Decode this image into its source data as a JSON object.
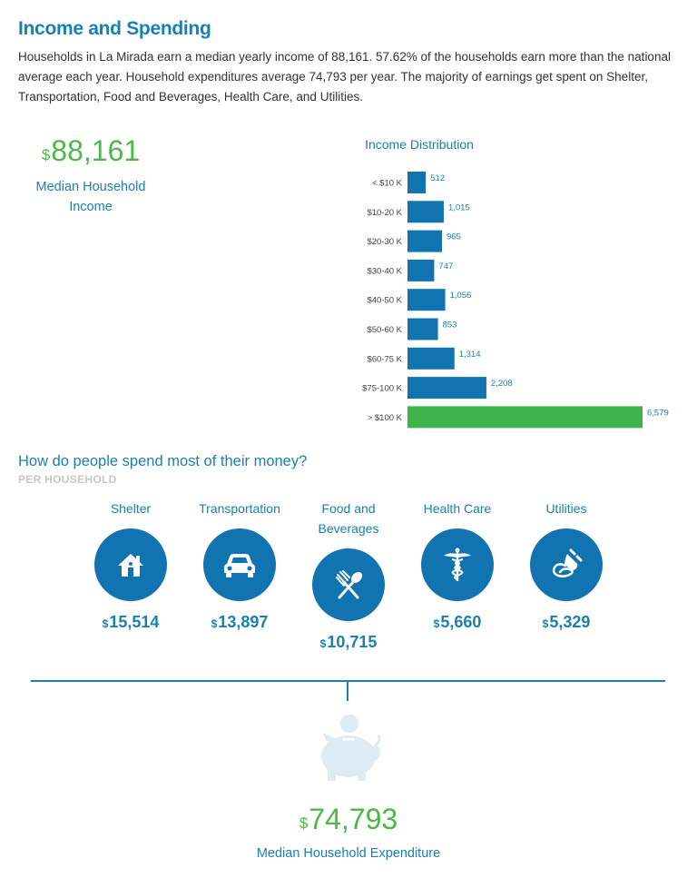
{
  "header": {
    "title": "Income and Spending",
    "intro": "Households in La Mirada earn a median yearly income of 88,161. 57.62% of the households earn more than the national average each year. Household expenditures average 74,793 per year. The majority of earnings get spent on Shelter, Transportation, Food and Beverages, Health Care, and Utilities."
  },
  "median_income": {
    "currency": "$",
    "value": "88,161",
    "label": "Median Household Income"
  },
  "chart_data": {
    "type": "bar",
    "orientation": "horizontal",
    "title": "Income Distribution",
    "categories": [
      "< $10 K",
      "$10-20 K",
      "$20-30 K",
      "$30-40 K",
      "$40-50 K",
      "$50-60 K",
      "$60-75 K",
      "$75-100 K",
      "> $100 K"
    ],
    "values": [
      512,
      1015,
      965,
      747,
      1056,
      853,
      1314,
      2208,
      6579
    ],
    "value_labels": [
      "512",
      "1,015",
      "965",
      "747",
      "1,056",
      "853",
      "1,314",
      "2,208",
      "6,579"
    ],
    "highlight_index": 8,
    "bar_color": "#1173b0",
    "highlight_color": "#3db54a",
    "xlim": [
      0,
      6579
    ]
  },
  "spending": {
    "title": "How do people spend most of their money?",
    "subtitle": "PER HOUSEHOLD",
    "currency": "$",
    "categories": [
      {
        "label": "Shelter",
        "value": "15,514",
        "icon": "house-icon"
      },
      {
        "label": "Transportation",
        "value": "13,897",
        "icon": "car-icon"
      },
      {
        "label": "Food and Beverages",
        "value": "10,715",
        "icon": "fork-spoon-icon"
      },
      {
        "label": "Health Care",
        "value": "5,660",
        "icon": "caduceus-icon"
      },
      {
        "label": "Utilities",
        "value": "5,329",
        "icon": "plug-icon"
      }
    ]
  },
  "expenditure": {
    "currency": "$",
    "value": "74,793",
    "label": "Median Household Expenditure"
  },
  "colors": {
    "accent_blue": "#1a7fb5",
    "circle_blue": "#1173b0",
    "green": "#4cb848",
    "piggy": "#ddebf2",
    "subtitle_gray": "#c8c8c8"
  }
}
